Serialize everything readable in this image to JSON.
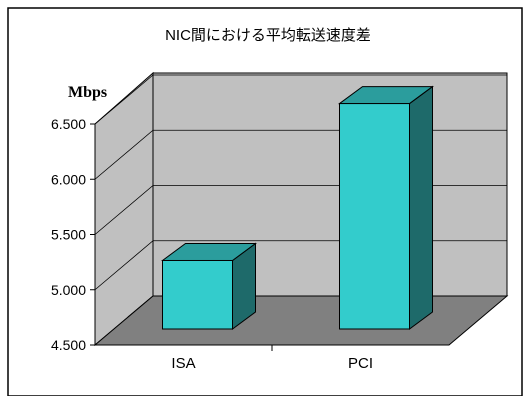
{
  "chart_data": {
    "type": "bar",
    "title": "NIC間における平均転送速度差",
    "ylabel": "Mbps",
    "xlabel": "",
    "categories": [
      "ISA",
      "PCI"
    ],
    "values": [
      5.12,
      6.54
    ],
    "ylim": [
      4.5,
      6.5
    ],
    "yticks": [
      "4.500",
      "5.000",
      "5.500",
      "6.000",
      "6.500"
    ],
    "grid": true,
    "three_d": true,
    "legend": "none",
    "colors": {
      "bar_front": "#33CCCC",
      "bar_top": "#2B9D9D",
      "bar_side": "#1E6A6A",
      "back_wall": "#C0C0C0",
      "floor": "#808080",
      "frame": "#000000"
    }
  }
}
